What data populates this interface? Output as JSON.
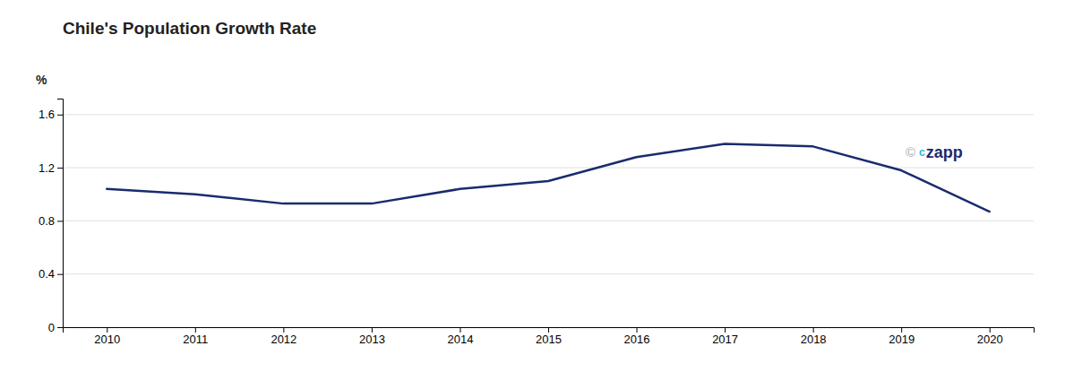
{
  "chart_data": {
    "type": "line",
    "title": "Chile's Population Growth Rate",
    "ylabel": "%",
    "x": [
      2010,
      2011,
      2012,
      2013,
      2014,
      2015,
      2016,
      2017,
      2018,
      2019,
      2020
    ],
    "values": [
      1.04,
      1.0,
      0.93,
      0.93,
      1.04,
      1.1,
      1.28,
      1.38,
      1.36,
      1.18,
      0.87
    ],
    "color": "#1a2b6e",
    "xlim": [
      2009.5,
      2020.5
    ],
    "xticks": [
      2010,
      2011,
      2012,
      2013,
      2014,
      2015,
      2016,
      2017,
      2018,
      2019,
      2020
    ],
    "ylim": [
      0,
      1.72
    ],
    "yticks": [
      0,
      0.4,
      0.8,
      1.2,
      1.6
    ],
    "grid": true,
    "annotations": [
      "©",
      "c",
      "zapp"
    ]
  }
}
